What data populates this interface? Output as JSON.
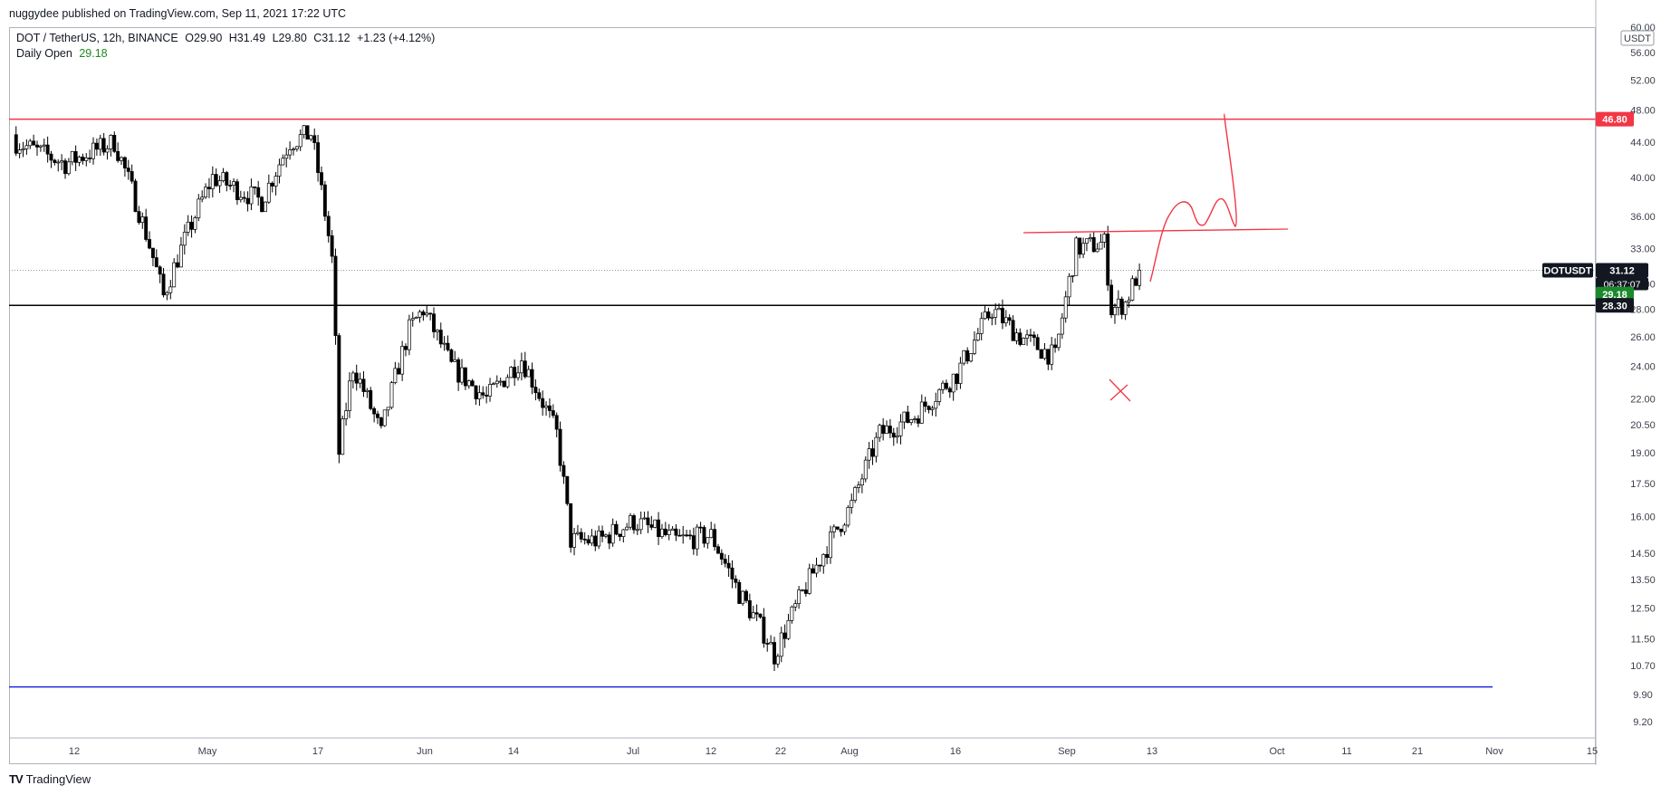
{
  "header": {
    "publish_line": "nuggydee published on TradingView.com, Sep 11, 2021 17:22 UTC"
  },
  "legend": {
    "symbol": "DOT / TetherUS, 12h, BINANCE",
    "open": "O29.90",
    "high": "H31.49",
    "low": "L29.80",
    "close": "C31.12",
    "change": "+1.23 (+4.12%)",
    "indicator_name": "Daily Open",
    "indicator_value": "29.18"
  },
  "price_axis": {
    "currency": "USDT",
    "tick_labels": [
      "60.00",
      "56.00",
      "52.00",
      "48.00",
      "44.00",
      "40.00",
      "36.00",
      "33.00",
      "30.00",
      "28.00",
      "26.00",
      "24.00",
      "22.00",
      "20.50",
      "19.00",
      "17.50",
      "16.00",
      "14.50",
      "13.50",
      "12.50",
      "11.50",
      "10.70",
      "9.90",
      "9.20"
    ]
  },
  "time_axis": {
    "tick_labels": [
      "12",
      "May",
      "17",
      "Jun",
      "14",
      "Jul",
      "12",
      "22",
      "Aug",
      "16",
      "Sep",
      "13",
      "Oct",
      "11",
      "21",
      "Nov",
      "15"
    ]
  },
  "tags": {
    "resistance": "46.80",
    "symbol_label": "DOTUSDT",
    "last_price": "31.12",
    "countdown": "06:37:07",
    "daily_open": "29.18",
    "support": "28.30"
  },
  "footer": {
    "brand": "TradingView",
    "logo": "TV"
  },
  "colors": {
    "bull": "#ffffff",
    "bear": "#000000",
    "candle_outline": "#000000",
    "resistance": "#f23645",
    "support": "#000000",
    "low_level": "#2028e0",
    "drawing": "#f23645",
    "daily_open": "#1b8a2c"
  },
  "chart_data": {
    "type": "candlestick",
    "symbol": "DOT / TetherUS",
    "interval": "12h",
    "exchange": "BINANCE",
    "y_scale": "log",
    "ylim": [
      8.8,
      60
    ],
    "xlim": [
      "2021-04-03",
      "2021-11-15"
    ],
    "x": [
      "2021-04-04",
      "2021-04-11",
      "2021-04-18",
      "2021-04-25",
      "2021-05-02",
      "2021-05-09",
      "2021-05-13",
      "2021-05-16",
      "2021-05-19",
      "2021-05-20",
      "2021-05-22",
      "2021-05-26",
      "2021-05-30",
      "2021-06-01",
      "2021-06-05",
      "2021-06-10",
      "2021-06-15",
      "2021-06-20",
      "2021-06-22",
      "2021-06-26",
      "2021-07-01",
      "2021-07-07",
      "2021-07-12",
      "2021-07-16",
      "2021-07-20",
      "2021-07-21",
      "2021-07-26",
      "2021-08-01",
      "2021-08-05",
      "2021-08-10",
      "2021-08-16",
      "2021-08-21",
      "2021-08-25",
      "2021-08-30",
      "2021-09-02",
      "2021-09-06",
      "2021-09-07",
      "2021-09-09",
      "2021-09-11"
    ],
    "close_path": [
      44.0,
      41.5,
      44.0,
      29.0,
      40.0,
      37.5,
      44.0,
      45.0,
      32.0,
      19.0,
      24.0,
      20.0,
      26.5,
      28.0,
      24.0,
      22.0,
      24.5,
      20.0,
      15.0,
      15.0,
      15.8,
      15.0,
      15.2,
      13.0,
      11.5,
      11.0,
      13.5,
      16.5,
      20.0,
      21.0,
      23.5,
      28.0,
      26.0,
      24.6,
      33.0,
      33.5,
      28.0,
      28.5,
      31.12
    ],
    "high_path": [
      46.5,
      46.0,
      48.0,
      31.0,
      41.0,
      44.0,
      48.0,
      49.5,
      40.0,
      26.0,
      25.5,
      25.0,
      28.0,
      29.0,
      26.0,
      24.0,
      27.0,
      22.0,
      16.5,
      16.8,
      17.5,
      16.5,
      16.0,
      14.0,
      12.5,
      12.5,
      14.5,
      18.0,
      21.0,
      22.0,
      25.0,
      29.5,
      28.0,
      26.0,
      34.0,
      35.0,
      34.5,
      30.0,
      31.49
    ],
    "low_path": [
      40.0,
      39.0,
      30.0,
      26.5,
      37.5,
      34.5,
      40.0,
      38.0,
      23.0,
      13.6,
      19.0,
      17.5,
      22.5,
      23.5,
      21.5,
      20.0,
      21.0,
      13.0,
      13.0,
      13.5,
      14.5,
      14.0,
      14.0,
      11.5,
      10.4,
      10.6,
      12.0,
      15.0,
      18.5,
      19.5,
      21.0,
      25.0,
      24.0,
      24.0,
      29.5,
      31.0,
      22.4,
      26.5,
      29.8
    ],
    "levels": [
      {
        "name": "Resistance",
        "value": 46.8
      },
      {
        "name": "Support",
        "value": 28.3
      },
      {
        "name": "Daily Open",
        "value": 29.18
      },
      {
        "name": "Low",
        "value": 10.1
      }
    ]
  }
}
